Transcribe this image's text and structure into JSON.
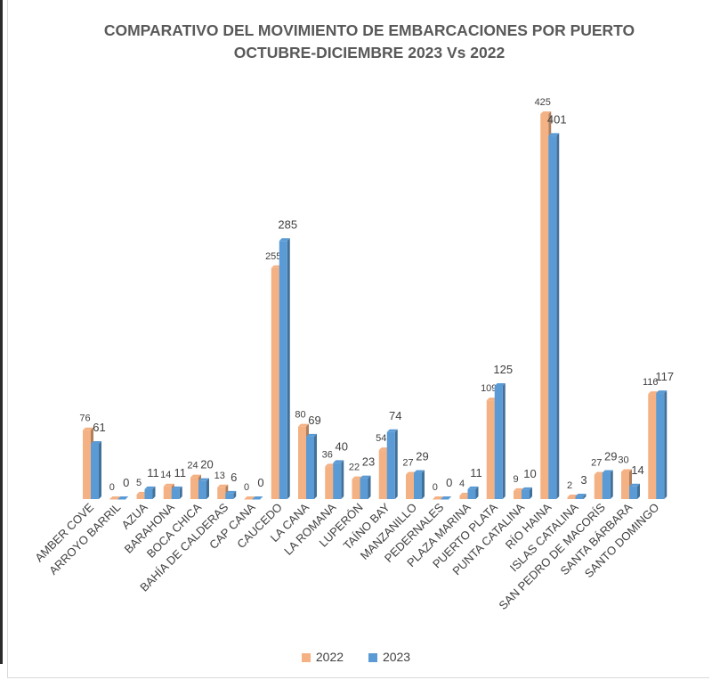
{
  "chart_data": {
    "type": "bar",
    "title_lines": [
      "COMPARATIVO DEL MOVIMIENTO DE EMBARCACIONES POR PUERTO",
      "OCTUBRE-DICIEMBRE 2023 Vs 2022"
    ],
    "categories": [
      "AMBER COVE",
      "ARROYO BARRIL",
      "AZUA",
      "BARAHONA",
      "BOCA CHICA",
      "BAHÍA DE CALDERAS",
      "CAP CANA",
      "CAUCEDO",
      "LA CANA",
      "LA ROMANA",
      "LUPERÓN",
      "TAÍNO BAY",
      "MANZANILLO",
      "PEDERNALES",
      "PLAZA MARINA",
      "PUERTO PLATA",
      "PUNTA CATALINA",
      "RÍO HAINA",
      "ISLAS CATALINA",
      "SAN PEDRO DE MACORÍS",
      "SANTA BÁRBARA",
      "SANTO DOMINGO"
    ],
    "series": [
      {
        "name": "2022",
        "color": "#F4B183",
        "values": [
          76,
          0,
          5,
          14,
          24,
          13,
          0,
          255,
          80,
          36,
          22,
          54,
          27,
          0,
          4,
          109,
          9,
          425,
          2,
          27,
          30,
          116
        ]
      },
      {
        "name": "2023",
        "color": "#5B9BD5",
        "values": [
          61,
          0,
          11,
          11,
          20,
          6,
          0,
          285,
          69,
          40,
          23,
          74,
          29,
          0,
          11,
          125,
          10,
          401,
          3,
          29,
          14,
          117
        ]
      }
    ],
    "ylim": [
      0,
      425
    ],
    "legend_position": "bottom",
    "grid": false
  }
}
